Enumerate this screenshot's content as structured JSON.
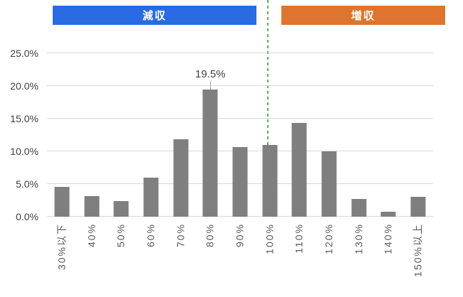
{
  "banners": {
    "decrease": {
      "label": "減収",
      "color": "#2a6ae3"
    },
    "increase": {
      "label": "増収",
      "color": "#dd7530"
    }
  },
  "divider": {
    "color": "#55b155",
    "style": "dashed",
    "at_category": "100%"
  },
  "chart_data": {
    "type": "bar",
    "title": "",
    "xlabel": "",
    "ylabel": "",
    "categories": [
      "30%以下",
      "40%",
      "50%",
      "60%",
      "70%",
      "80%",
      "90%",
      "100%",
      "110%",
      "120%",
      "130%",
      "140%",
      "150%以上"
    ],
    "values": [
      4.6,
      3.2,
      2.4,
      6.0,
      11.9,
      19.5,
      10.6,
      11.0,
      14.3,
      10.0,
      2.7,
      0.8,
      3.0
    ],
    "unit": "%",
    "bar_color": "#7f7f7f",
    "grid": true,
    "gridline_color": "#d9d9d9",
    "ylim": [
      0,
      25
    ],
    "y_ticks": [
      {
        "label": "0.0%",
        "value": 0
      },
      {
        "label": "5.0%",
        "value": 5
      },
      {
        "label": "10.0%",
        "value": 10
      },
      {
        "label": "15.0%",
        "value": 15
      },
      {
        "label": "20.0%",
        "value": 20
      },
      {
        "label": "25.0%",
        "value": 25
      }
    ],
    "annotation": {
      "category": "80%",
      "text": "19.5%"
    }
  }
}
